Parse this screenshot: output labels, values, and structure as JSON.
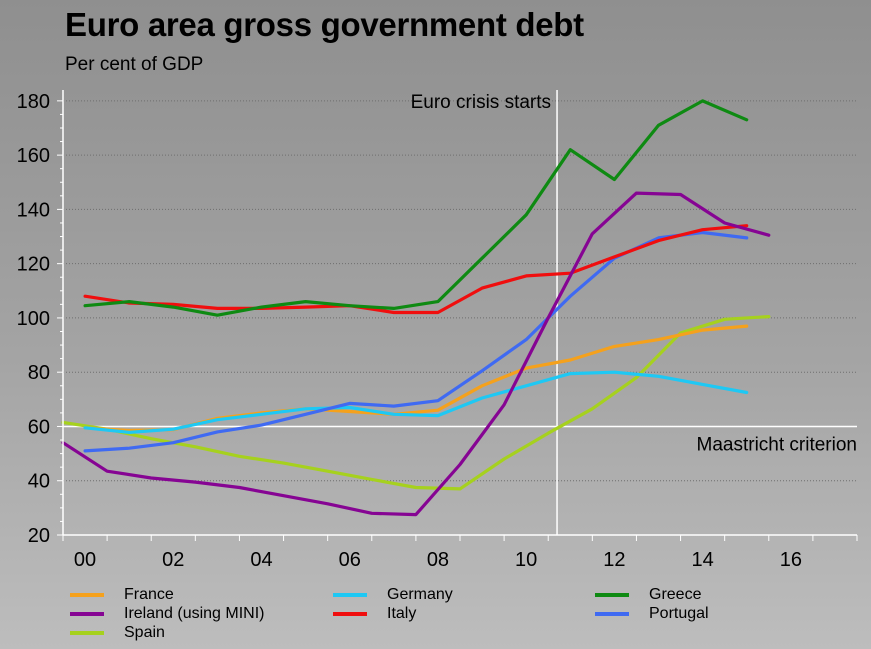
{
  "chart_data": {
    "type": "line",
    "title": "Euro area gross government debt",
    "subtitle": "Per cent of GDP",
    "xlabel": "",
    "ylabel": "",
    "xlim": [
      -0.5,
      17.5
    ],
    "ylim": [
      20,
      184
    ],
    "x_ticks": [
      0,
      2,
      4,
      6,
      8,
      10,
      12,
      14,
      16
    ],
    "x_tick_labels": [
      "00",
      "02",
      "04",
      "06",
      "08",
      "10",
      "12",
      "14",
      "16"
    ],
    "y_ticks": [
      20,
      40,
      60,
      80,
      100,
      120,
      140,
      160,
      180
    ],
    "y_tick_labels": [
      "20",
      "40",
      "60",
      "80",
      "100",
      "120",
      "140",
      "160",
      "180"
    ],
    "grid": true,
    "annotations": [
      {
        "id": "euro-crisis",
        "kind": "vline",
        "x": 10.7,
        "text": "Euro crisis starts"
      },
      {
        "id": "maastricht",
        "kind": "hline",
        "y": 60,
        "text": "Maastricht criterion"
      }
    ],
    "series": [
      {
        "name": "France",
        "color": "#f5a11c",
        "x": [
          0,
          1,
          2,
          3,
          4,
          5,
          6,
          7,
          8,
          9,
          10,
          11,
          12,
          13,
          14,
          15
        ],
        "values": [
          59.5,
          58.5,
          58.8,
          63,
          65,
          66.5,
          65.5,
          64.5,
          66,
          75,
          81.5,
          84.5,
          89.5,
          92,
          95.5,
          97
        ]
      },
      {
        "name": "Germany",
        "color": "#1ec8f4",
        "x": [
          0,
          1,
          2,
          3,
          4,
          5,
          6,
          7,
          8,
          9,
          10,
          11,
          12,
          13,
          14,
          15
        ],
        "values": [
          59.5,
          57.8,
          59,
          62.5,
          64.5,
          66.5,
          67,
          64.5,
          64,
          70.5,
          75,
          79.5,
          80,
          78.5,
          75.5,
          72.5
        ]
      },
      {
        "name": "Greece",
        "color": "#0e8a12",
        "x": [
          0,
          1,
          2,
          3,
          4,
          5,
          6,
          7,
          8,
          9,
          10,
          11,
          12,
          13,
          14,
          15
        ],
        "values": [
          104.5,
          106,
          104,
          101,
          104,
          106,
          104.5,
          103.5,
          106,
          122,
          138,
          162,
          151,
          171,
          180,
          173
        ]
      },
      {
        "name": "Ireland (using MINI)",
        "color": "#860493",
        "x": [
          -0.5,
          0.5,
          1.5,
          2.5,
          3.5,
          4.5,
          5.5,
          6.5,
          7.5,
          8.5,
          9.5,
          10.5,
          11.5,
          12.5,
          13.5,
          14.5,
          15.5
        ],
        "values": [
          54,
          43.5,
          41,
          39.5,
          37.5,
          34.5,
          31.5,
          28,
          27.5,
          46,
          68,
          100,
          131,
          146,
          145.5,
          135,
          130.5
        ]
      },
      {
        "name": "Italy",
        "color": "#f00e0e",
        "x": [
          0,
          1,
          2,
          3,
          4,
          5,
          6,
          7,
          8,
          9,
          10,
          11,
          12,
          13,
          14,
          15
        ],
        "values": [
          108,
          105.5,
          105,
          103.5,
          103.5,
          104,
          104.5,
          102,
          102,
          111,
          115.5,
          116.5,
          122.5,
          128.5,
          132.5,
          134
        ]
      },
      {
        "name": "Portugal",
        "color": "#3f6af2",
        "x": [
          0,
          1,
          2,
          3,
          4,
          5,
          6,
          7,
          8,
          9,
          10,
          11,
          12,
          13,
          14,
          15
        ],
        "values": [
          51,
          52,
          54,
          58,
          60.5,
          64.5,
          68.5,
          67.5,
          69.5,
          80.5,
          92,
          108,
          122,
          129.5,
          131.5,
          129.5
        ]
      },
      {
        "name": "Spain",
        "color": "#a6d11e",
        "x": [
          -0.5,
          0.5,
          1.5,
          2.5,
          3.5,
          4.5,
          5.5,
          6.5,
          7.5,
          8.5,
          9.5,
          10.5,
          11.5,
          12.5,
          13.5,
          14.5,
          15.5
        ],
        "values": [
          61.5,
          59,
          55.5,
          52.5,
          49,
          46.5,
          43.5,
          40.5,
          37.5,
          37,
          48,
          57.5,
          66.5,
          78,
          94.5,
          99.5,
          100.5
        ]
      }
    ],
    "legend_position": "bottom"
  },
  "legend": {
    "items": [
      {
        "name": "France",
        "color": "#f5a11c"
      },
      {
        "name": "Germany",
        "color": "#1ec8f4"
      },
      {
        "name": "Greece",
        "color": "#0e8a12"
      },
      {
        "name": "Ireland (using MINI)",
        "color": "#860493"
      },
      {
        "name": "Italy",
        "color": "#f00e0e"
      },
      {
        "name": "Portugal",
        "color": "#3f6af2"
      },
      {
        "name": "Spain",
        "color": "#a6d11e"
      }
    ]
  }
}
